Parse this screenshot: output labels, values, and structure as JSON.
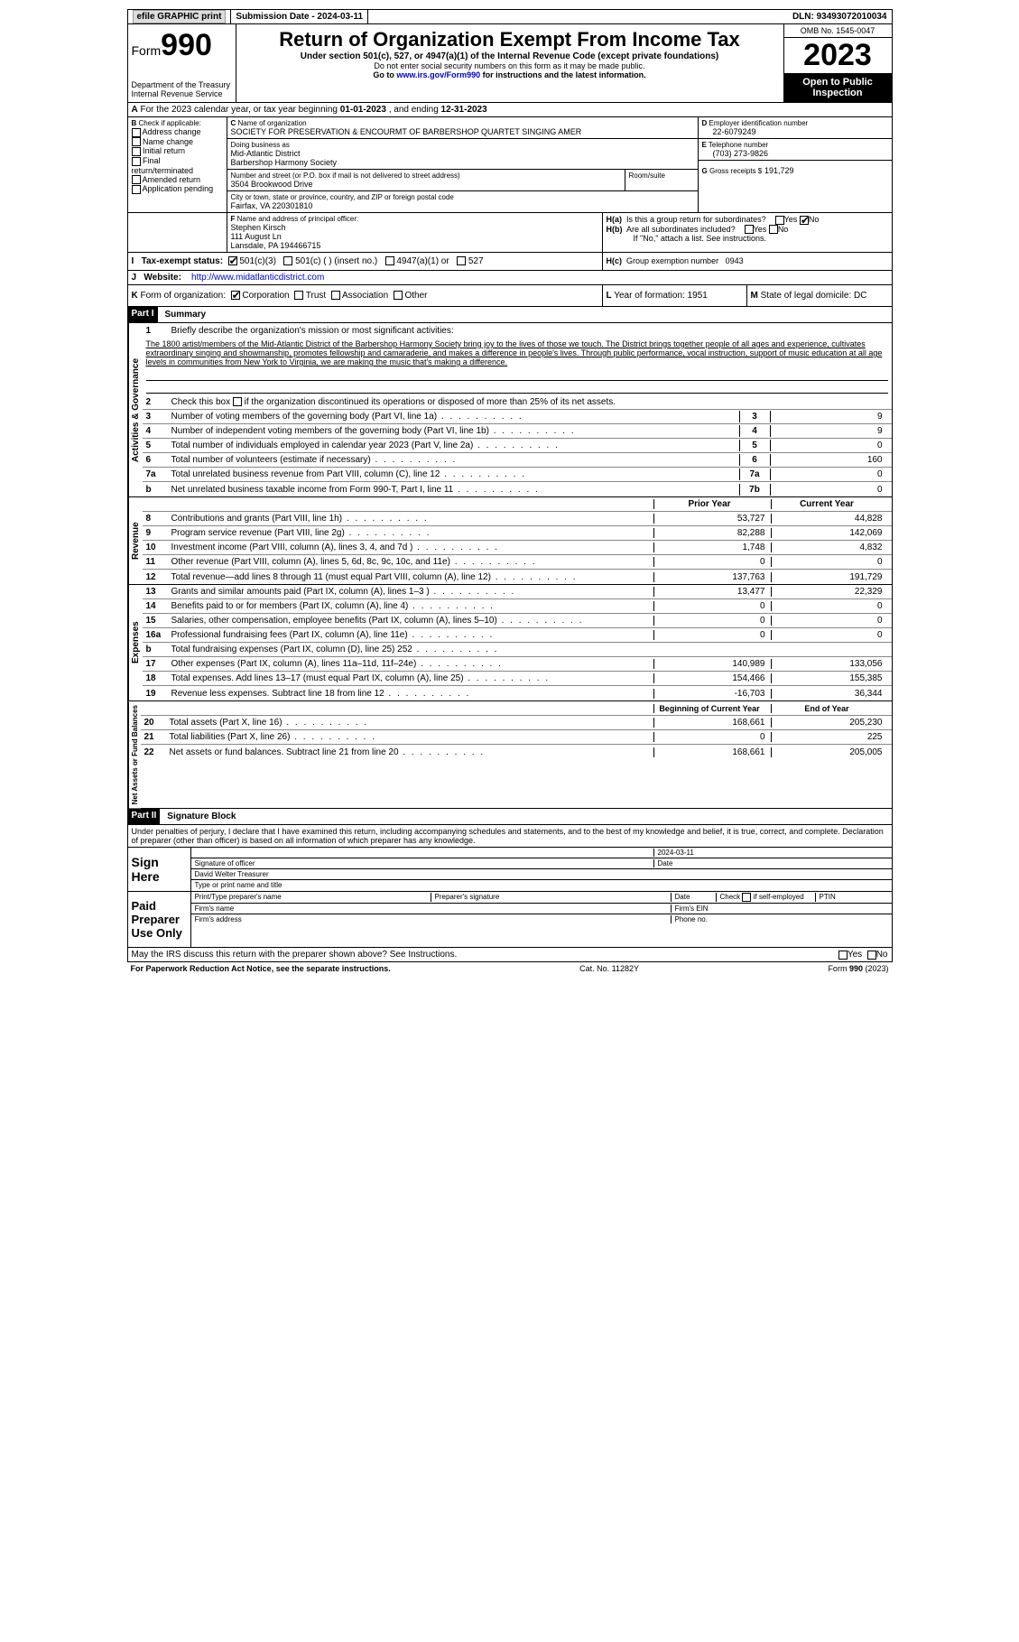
{
  "topbar": {
    "efile": "efile GRAPHIC print",
    "subdate_label": "Submission Date - ",
    "subdate": "2024-03-11",
    "dln_label": "DLN: ",
    "dln": "93493072010034"
  },
  "header": {
    "form_word": "Form",
    "form_num": "990",
    "dept": "Department of the Treasury\nInternal Revenue Service",
    "title": "Return of Organization Exempt From Income Tax",
    "sub1": "Under section 501(c), 527, or 4947(a)(1) of the Internal Revenue Code (except private foundations)",
    "sub2": "Do not enter social security numbers on this form as it may be made public.",
    "sub3_pre": "Go to ",
    "sub3_link": "www.irs.gov/Form990",
    "sub3_post": " for instructions and the latest information.",
    "omb": "OMB No. 1545-0047",
    "year": "2023",
    "open": "Open to Public Inspection"
  },
  "A": {
    "text": "For the 2023 calendar year, or tax year beginning ",
    "begin": "01-01-2023",
    "mid": " , and ending ",
    "end": "12-31-2023"
  },
  "B": {
    "label": "Check if applicable:",
    "items": [
      "Address change",
      "Name change",
      "Initial return",
      "Final return/terminated",
      "Amended return",
      "Application pending"
    ]
  },
  "C": {
    "name_label": "Name of organization",
    "name": "SOCIETY FOR PRESERVATION & ENCOURMT OF BARBERSHOP QUARTET SINGING AMER",
    "dba_label": "Doing business as",
    "dba1": "Mid-Atlantic District",
    "dba2": "Barbershop Harmony Society",
    "street_label": "Number and street (or P.O. box if mail is not delivered to street address)",
    "room_label": "Room/suite",
    "street": "3504 Brookwood Drive",
    "city_label": "City or town, state or province, country, and ZIP or foreign postal code",
    "city": "Fairfax, VA  220301810"
  },
  "D": {
    "label": "Employer identification number",
    "val": "22-6079249"
  },
  "E": {
    "label": "Telephone number",
    "val": "(703) 273-9826"
  },
  "G": {
    "label": "Gross receipts $",
    "val": "191,729"
  },
  "F": {
    "label": "Name and address of principal officer:",
    "name": "Stephen Kirsch",
    "addr1": "111 August Ln",
    "addr2": "Lansdale, PA  194466715"
  },
  "H": {
    "a": "Is this a group return for subordinates?",
    "b": "Are all subordinates included?",
    "b_note": "If \"No,\" attach a list. See instructions.",
    "c_label": "Group exemption number",
    "c_val": "0943",
    "yes": "Yes",
    "no": "No"
  },
  "I": {
    "label": "Tax-exempt status:",
    "opts": [
      "501(c)(3)",
      "501(c) (  ) (insert no.)",
      "4947(a)(1) or",
      "527"
    ]
  },
  "J": {
    "label": "Website:",
    "val": "http://www.midatlanticdistrict.com"
  },
  "K": {
    "label": "Form of organization:",
    "opts": [
      "Corporation",
      "Trust",
      "Association",
      "Other"
    ]
  },
  "L": {
    "label": "Year of formation:",
    "val": "1951"
  },
  "M": {
    "label": "State of legal domicile:",
    "val": "DC"
  },
  "part1": {
    "label": "Part I",
    "title": "Summary",
    "line1_label": "Briefly describe the organization's mission or most significant activities:",
    "mission": "The 1800 artist/members of the Mid-Atlantic District of the Barbershop Harmony Society bring joy to the lives of those we touch. The District brings together people of all ages and experience, cultivates extraordinary singing and showmanship, promotes fellowship and camaraderie, and makes a difference in people's lives. Through public performance, vocal instruction, support of music education at all age levels in communities from New York to Virginia, we are making the music that's making a difference.",
    "line2": "Check this box      if the organization discontinued its operations or disposed of more than 25% of its net assets.",
    "vert_ag": "Activities & Governance",
    "vert_rev": "Revenue",
    "vert_exp": "Expenses",
    "vert_net": "Net Assets or Fund Balances",
    "rows_gov": [
      {
        "n": "3",
        "d": "Number of voting members of the governing body (Part VI, line 1a)",
        "box": "3",
        "v": "9"
      },
      {
        "n": "4",
        "d": "Number of independent voting members of the governing body (Part VI, line 1b)",
        "box": "4",
        "v": "9"
      },
      {
        "n": "5",
        "d": "Total number of individuals employed in calendar year 2023 (Part V, line 2a)",
        "box": "5",
        "v": "0"
      },
      {
        "n": "6",
        "d": "Total number of volunteers (estimate if necessary)",
        "box": "6",
        "v": "160"
      },
      {
        "n": "7a",
        "d": "Total unrelated business revenue from Part VIII, column (C), line 12",
        "box": "7a",
        "v": "0"
      },
      {
        "n": "b",
        "d": "Net unrelated business taxable income from Form 990-T, Part I, line 11",
        "box": "7b",
        "v": "0"
      }
    ],
    "col_prior": "Prior Year",
    "col_curr": "Current Year",
    "rows_rev": [
      {
        "n": "8",
        "d": "Contributions and grants (Part VIII, line 1h)",
        "p": "53,727",
        "c": "44,828"
      },
      {
        "n": "9",
        "d": "Program service revenue (Part VIII, line 2g)",
        "p": "82,288",
        "c": "142,069"
      },
      {
        "n": "10",
        "d": "Investment income (Part VIII, column (A), lines 3, 4, and 7d )",
        "p": "1,748",
        "c": "4,832"
      },
      {
        "n": "11",
        "d": "Other revenue (Part VIII, column (A), lines 5, 6d, 8c, 9c, 10c, and 11e)",
        "p": "0",
        "c": "0"
      },
      {
        "n": "12",
        "d": "Total revenue—add lines 8 through 11 (must equal Part VIII, column (A), line 12)",
        "p": "137,763",
        "c": "191,729"
      }
    ],
    "rows_exp": [
      {
        "n": "13",
        "d": "Grants and similar amounts paid (Part IX, column (A), lines 1–3 )",
        "p": "13,477",
        "c": "22,329"
      },
      {
        "n": "14",
        "d": "Benefits paid to or for members (Part IX, column (A), line 4)",
        "p": "0",
        "c": "0"
      },
      {
        "n": "15",
        "d": "Salaries, other compensation, employee benefits (Part IX, column (A), lines 5–10)",
        "p": "0",
        "c": "0"
      },
      {
        "n": "16a",
        "d": "Professional fundraising fees (Part IX, column (A), line 11e)",
        "p": "0",
        "c": "0"
      },
      {
        "n": "b",
        "d": "Total fundraising expenses (Part IX, column (D), line 25) 252",
        "p": "",
        "c": "",
        "grey": true
      },
      {
        "n": "17",
        "d": "Other expenses (Part IX, column (A), lines 11a–11d, 11f–24e)",
        "p": "140,989",
        "c": "133,056"
      },
      {
        "n": "18",
        "d": "Total expenses. Add lines 13–17 (must equal Part IX, column (A), line 25)",
        "p": "154,466",
        "c": "155,385"
      },
      {
        "n": "19",
        "d": "Revenue less expenses. Subtract line 18 from line 12",
        "p": "-16,703",
        "c": "36,344"
      }
    ],
    "col_begin": "Beginning of Current Year",
    "col_end": "End of Year",
    "rows_net": [
      {
        "n": "20",
        "d": "Total assets (Part X, line 16)",
        "p": "168,661",
        "c": "205,230"
      },
      {
        "n": "21",
        "d": "Total liabilities (Part X, line 26)",
        "p": "0",
        "c": "225"
      },
      {
        "n": "22",
        "d": "Net assets or fund balances. Subtract line 21 from line 20",
        "p": "168,661",
        "c": "205,005"
      }
    ]
  },
  "part2": {
    "label": "Part II",
    "title": "Signature Block",
    "decl": "Under penalties of perjury, I declare that I have examined this return, including accompanying schedules and statements, and to the best of my knowledge and belief, it is true, correct, and complete. Declaration of preparer (other than officer) is based on all information of which preparer has any knowledge.",
    "sign_here": "Sign Here",
    "sig_date": "2024-03-11",
    "sig_label": "Signature of officer",
    "sig_name": "David Welter  Treasurer",
    "sig_type": "Type or print name and title",
    "date_label": "Date",
    "paid": "Paid Preparer Use Only",
    "prep_name": "Print/Type preparer's name",
    "prep_sig": "Preparer's signature",
    "prep_date": "Date",
    "prep_check": "Check        if self-employed",
    "ptin": "PTIN",
    "firm_name": "Firm's name",
    "firm_ein": "Firm's EIN",
    "firm_addr": "Firm's address",
    "phone": "Phone no.",
    "discuss": "May the IRS discuss this return with the preparer shown above? See Instructions."
  },
  "footer": {
    "pra": "For Paperwork Reduction Act Notice, see the separate instructions.",
    "cat": "Cat. No. 11282Y",
    "form": "Form 990 (2023)"
  }
}
